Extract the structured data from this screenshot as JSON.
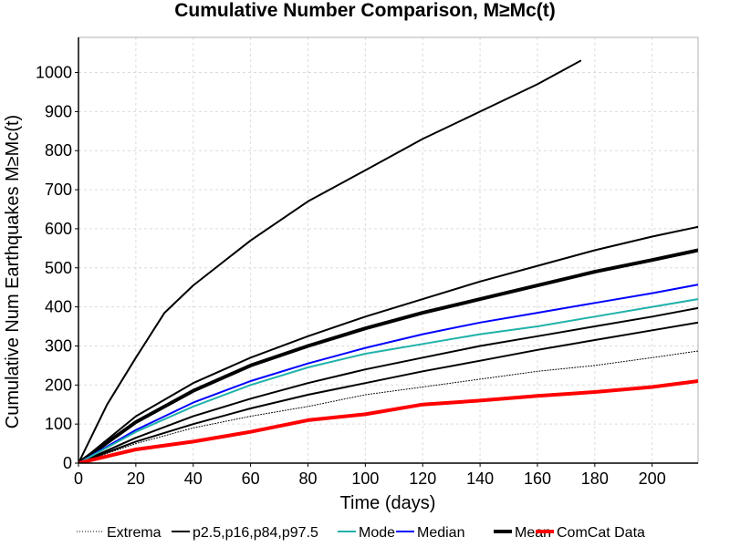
{
  "chart_data": {
    "type": "line",
    "title": "Cumulative Number Comparison, M≥Mc(t)",
    "xlabel": "Time (days)",
    "ylabel": "Cumulative Num Earthquakes M≥Mc(t)",
    "xlim": [
      0,
      216
    ],
    "ylim": [
      0,
      1090
    ],
    "x_ticks": [
      0,
      20,
      40,
      60,
      80,
      100,
      120,
      140,
      160,
      180,
      200
    ],
    "y_ticks": [
      0,
      100,
      200,
      300,
      400,
      500,
      600,
      700,
      800,
      900,
      1000
    ],
    "grid": true,
    "legend_position": "bottom",
    "legend": [
      {
        "label": "Extrema",
        "style": "dotted",
        "color": "#000000"
      },
      {
        "label": "p2.5,p16,p84,p97.5",
        "style": "solid",
        "color": "#000000"
      },
      {
        "label": "Mode",
        "style": "solid",
        "color": "#20b2aa"
      },
      {
        "label": "Median",
        "style": "solid",
        "color": "#0000ff"
      },
      {
        "label": "Mean",
        "style": "thick",
        "color": "#000000"
      },
      {
        "label": "ComCat Data",
        "style": "thick",
        "color": "#ff0000"
      }
    ],
    "series": [
      {
        "key": "extrema_upper",
        "color": "#000000",
        "width": 2,
        "dash": "",
        "x": [
          0,
          10,
          20,
          30,
          40,
          60,
          80,
          100,
          120,
          140,
          160,
          175
        ],
        "y": [
          0,
          150,
          270,
          385,
          455,
          570,
          670,
          750,
          830,
          900,
          970,
          1030
        ]
      },
      {
        "key": "extrema_lower",
        "color": "#000000",
        "width": 1,
        "dash": "1,2",
        "x": [
          0,
          20,
          40,
          60,
          80,
          100,
          120,
          140,
          160,
          180,
          200,
          216
        ],
        "y": [
          0,
          50,
          90,
          120,
          145,
          175,
          195,
          215,
          235,
          250,
          270,
          287
        ]
      },
      {
        "key": "p97_5",
        "color": "#000000",
        "width": 2,
        "dash": "",
        "x": [
          0,
          20,
          40,
          60,
          80,
          100,
          120,
          140,
          160,
          180,
          200,
          216
        ],
        "y": [
          0,
          120,
          205,
          270,
          325,
          375,
          420,
          465,
          505,
          545,
          580,
          605
        ]
      },
      {
        "key": "p84",
        "color": "#000000",
        "width": 2,
        "dash": "",
        "x": [
          0,
          20,
          40,
          60,
          80,
          100,
          120,
          140,
          160,
          180,
          200,
          216
        ],
        "y": [
          0,
          65,
          120,
          165,
          205,
          240,
          270,
          300,
          325,
          350,
          375,
          397
        ]
      },
      {
        "key": "p16",
        "color": "#000000",
        "width": 2,
        "dash": "",
        "x": [
          0,
          20,
          40,
          60,
          80,
          100,
          120,
          140,
          160,
          180,
          200,
          216
        ],
        "y": [
          0,
          55,
          100,
          140,
          175,
          205,
          235,
          262,
          290,
          315,
          340,
          360
        ]
      },
      {
        "key": "mean",
        "color": "#000000",
        "width": 4,
        "dash": "",
        "x": [
          0,
          20,
          40,
          60,
          80,
          100,
          120,
          140,
          160,
          180,
          200,
          216
        ],
        "y": [
          0,
          105,
          185,
          250,
          300,
          345,
          385,
          420,
          455,
          490,
          520,
          545
        ]
      },
      {
        "key": "median",
        "color": "#0000ff",
        "width": 2,
        "dash": "",
        "x": [
          0,
          20,
          40,
          60,
          80,
          100,
          120,
          140,
          160,
          180,
          200,
          216
        ],
        "y": [
          0,
          85,
          155,
          210,
          255,
          295,
          330,
          360,
          385,
          410,
          435,
          457
        ]
      },
      {
        "key": "mode",
        "color": "#20b2aa",
        "width": 2,
        "dash": "",
        "x": [
          0,
          20,
          40,
          60,
          80,
          100,
          120,
          140,
          160,
          180,
          200,
          216
        ],
        "y": [
          0,
          80,
          145,
          200,
          245,
          280,
          305,
          330,
          350,
          375,
          400,
          420
        ]
      },
      {
        "key": "comcat",
        "color": "#ff0000",
        "width": 4,
        "dash": "",
        "x": [
          0,
          20,
          40,
          60,
          80,
          100,
          120,
          140,
          160,
          180,
          200,
          216
        ],
        "y": [
          0,
          35,
          55,
          80,
          110,
          125,
          150,
          160,
          172,
          182,
          195,
          210
        ]
      }
    ]
  }
}
